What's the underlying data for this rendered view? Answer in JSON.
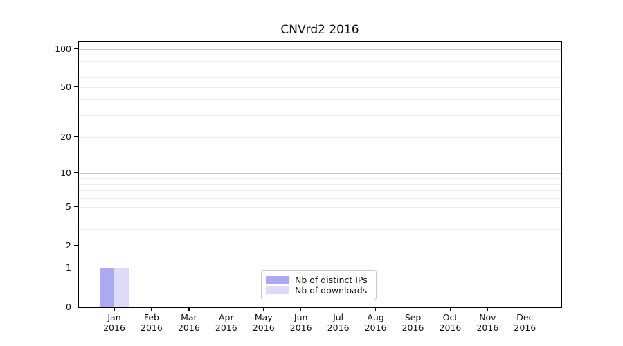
{
  "chart_data": {
    "type": "bar",
    "title": "CNVrd2 2016",
    "categories": [
      "Jan",
      "Feb",
      "Mar",
      "Apr",
      "May",
      "Jun",
      "Jul",
      "Aug",
      "Sep",
      "Oct",
      "Nov",
      "Dec"
    ],
    "category_year": "2016",
    "series": [
      {
        "name": "Nb of distinct IPs",
        "color": "#aaaaf2",
        "values": [
          1,
          0,
          0,
          0,
          0,
          0,
          0,
          0,
          0,
          0,
          0,
          0
        ]
      },
      {
        "name": "Nb of downloads",
        "color": "#dcdcf8",
        "values": [
          1,
          0,
          0,
          0,
          0,
          0,
          0,
          0,
          0,
          0,
          0,
          0
        ]
      }
    ],
    "y_axis": {
      "scale": "log1p",
      "tick_values": [
        0,
        1,
        2,
        5,
        10,
        20,
        50,
        100
      ],
      "major_gridlines": [
        1,
        10,
        100
      ],
      "minor_gridlines": [
        2,
        3,
        4,
        5,
        6,
        7,
        8,
        9,
        20,
        30,
        40,
        50,
        60,
        70,
        80,
        90
      ],
      "range": [
        0,
        115
      ]
    },
    "x_axis": {
      "tick_count": 12
    },
    "legend": {
      "position": "inside-bottom-center",
      "entries": [
        "Nb of distinct IPs",
        "Nb of downloads"
      ]
    },
    "grid": true,
    "colors": {
      "major_grid": "#c9c9c9",
      "minor_grid": "#ececec",
      "spine": "#000000",
      "background": "#ffffff",
      "legend_border": "#c9c9c9"
    }
  }
}
